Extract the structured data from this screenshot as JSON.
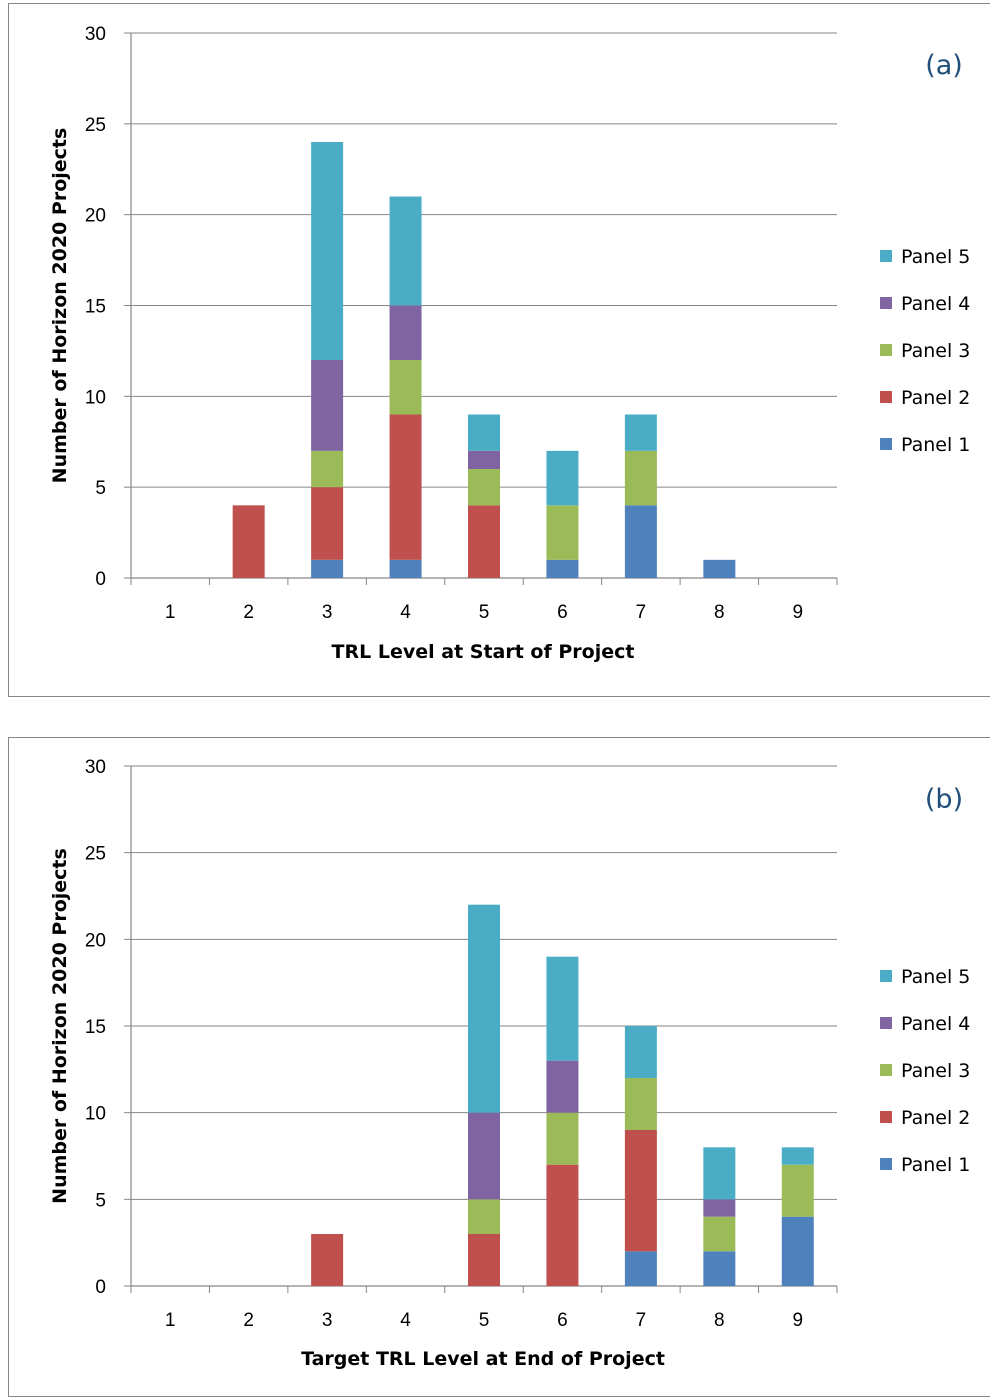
{
  "chart_data": [
    {
      "type": "bar",
      "stacked": true,
      "panel_label": "(a)",
      "categories": [
        "1",
        "2",
        "3",
        "4",
        "5",
        "6",
        "7",
        "8",
        "9"
      ],
      "xlabel": "TRL Level at Start of Project",
      "ylabel": "Number of Horizon 2020 Projects",
      "ylim": [
        0,
        30
      ],
      "yticks": [
        "0",
        "5",
        "10",
        "15",
        "20",
        "25",
        "30"
      ],
      "grid": true,
      "legend_position": "right",
      "series": [
        {
          "name": "Panel 1",
          "color": "#4f81bd",
          "values": [
            0,
            0,
            1,
            1,
            0,
            1,
            4,
            1,
            0
          ]
        },
        {
          "name": "Panel 2",
          "color": "#c0504d",
          "values": [
            0,
            4,
            4,
            8,
            4,
            0,
            0,
            0,
            0
          ]
        },
        {
          "name": "Panel 3",
          "color": "#9bbb59",
          "values": [
            0,
            0,
            2,
            3,
            2,
            3,
            3,
            0,
            0
          ]
        },
        {
          "name": "Panel 4",
          "color": "#8064a2",
          "values": [
            0,
            0,
            5,
            3,
            1,
            0,
            0,
            0,
            0
          ]
        },
        {
          "name": "Panel 5",
          "color": "#4bacc6",
          "values": [
            0,
            0,
            12,
            6,
            2,
            3,
            2,
            0,
            0
          ]
        }
      ]
    },
    {
      "type": "bar",
      "stacked": true,
      "panel_label": "(b)",
      "categories": [
        "1",
        "2",
        "3",
        "4",
        "5",
        "6",
        "7",
        "8",
        "9"
      ],
      "xlabel": "Target TRL Level at End of Project",
      "ylabel": "Number of Horizon 2020 Projects",
      "ylim": [
        0,
        30
      ],
      "yticks": [
        "0",
        "5",
        "10",
        "15",
        "20",
        "25",
        "30"
      ],
      "grid": true,
      "legend_position": "right",
      "series": [
        {
          "name": "Panel 1",
          "color": "#4f81bd",
          "values": [
            0,
            0,
            0,
            0,
            0,
            0,
            2,
            2,
            4
          ]
        },
        {
          "name": "Panel 2",
          "color": "#c0504d",
          "values": [
            0,
            0,
            3,
            0,
            3,
            7,
            7,
            0,
            0
          ]
        },
        {
          "name": "Panel 3",
          "color": "#9bbb59",
          "values": [
            0,
            0,
            0,
            0,
            2,
            3,
            3,
            2,
            3
          ]
        },
        {
          "name": "Panel 4",
          "color": "#8064a2",
          "values": [
            0,
            0,
            0,
            0,
            5,
            3,
            0,
            1,
            0
          ]
        },
        {
          "name": "Panel 5",
          "color": "#4bacc6",
          "values": [
            0,
            0,
            0,
            0,
            12,
            6,
            3,
            3,
            1
          ]
        }
      ]
    }
  ]
}
